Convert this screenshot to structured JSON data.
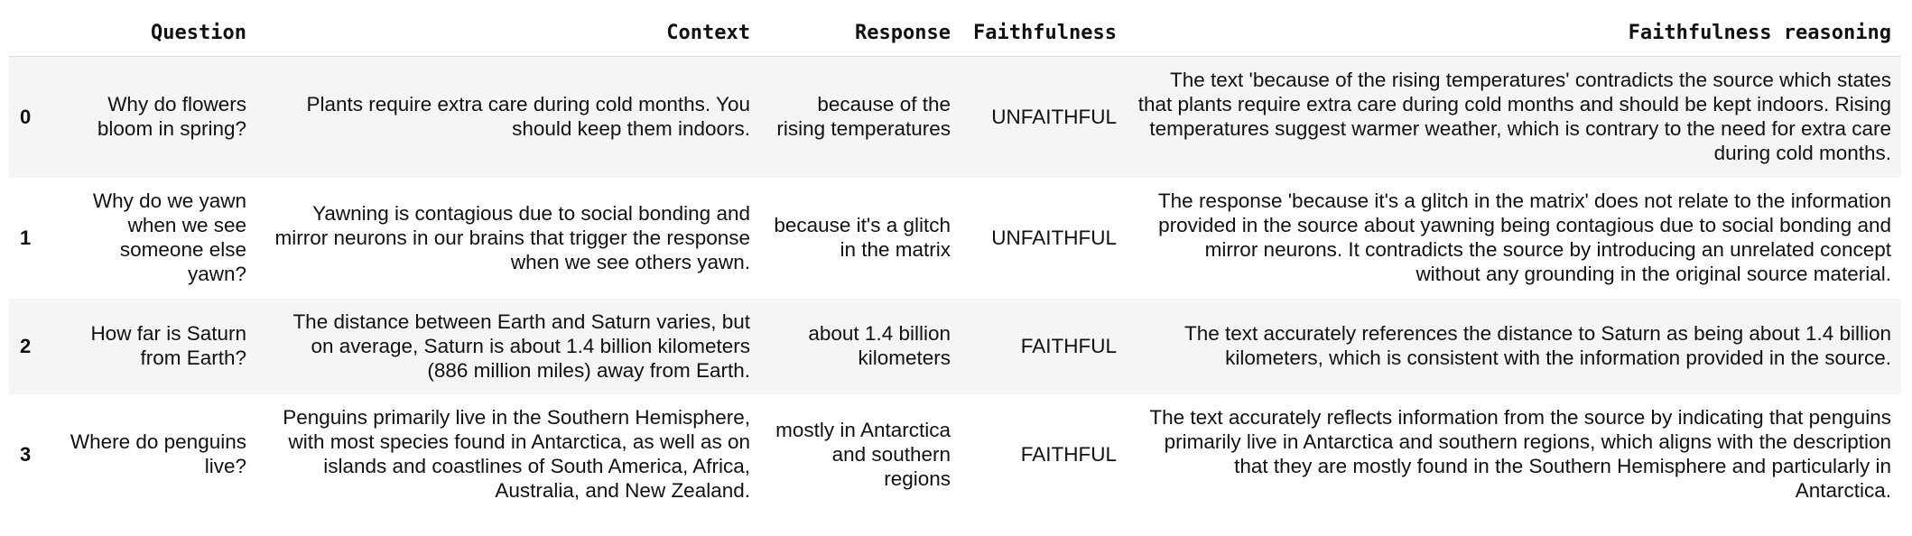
{
  "columns": {
    "index": "",
    "question": "Question",
    "context": "Context",
    "response": "Response",
    "faithfulness": "Faithfulness",
    "reasoning": "Faithfulness reasoning"
  },
  "rows": [
    {
      "index": "0",
      "question": "Why do flowers bloom in spring?",
      "context": "Plants require extra care during cold months. You should keep them indoors.",
      "response": "because of the rising temperatures",
      "faithfulness": "UNFAITHFUL",
      "reasoning": "The text 'because of the rising temperatures' contradicts the source which states that plants require extra care during cold months and should be kept indoors. Rising temperatures suggest warmer weather, which is contrary to the need for extra care during cold months."
    },
    {
      "index": "1",
      "question": "Why do we yawn when we see someone else yawn?",
      "context": "Yawning is contagious due to social bonding and mirror neurons in our brains that trigger the response when we see others yawn.",
      "response": "because it's a glitch in the matrix",
      "faithfulness": "UNFAITHFUL",
      "reasoning": "The response 'because it's a glitch in the matrix' does not relate to the information provided in the source about yawning being contagious due to social bonding and mirror neurons. It contradicts the source by introducing an unrelated concept without any grounding in the original source material."
    },
    {
      "index": "2",
      "question": "How far is Saturn from Earth?",
      "context": "The distance between Earth and Saturn varies, but on average, Saturn is about 1.4 billion kilometers (886 million miles) away from Earth.",
      "response": "about 1.4 billion kilometers",
      "faithfulness": "FAITHFUL",
      "reasoning": "The text accurately references the distance to Saturn as being about 1.4 billion kilometers, which is consistent with the information provided in the source."
    },
    {
      "index": "3",
      "question": "Where do penguins live?",
      "context": "Penguins primarily live in the Southern Hemisphere, with most species found in Antarctica, as well as on islands and coastlines of South America, Africa, Australia, and New Zealand.",
      "response": "mostly in Antarctica and southern regions",
      "faithfulness": "FAITHFUL",
      "reasoning": "The text accurately reflects information from the source by indicating that penguins primarily live in Antarctica and southern regions, which aligns with the description that they are mostly found in the Southern Hemisphere and particularly in Antarctica."
    }
  ]
}
